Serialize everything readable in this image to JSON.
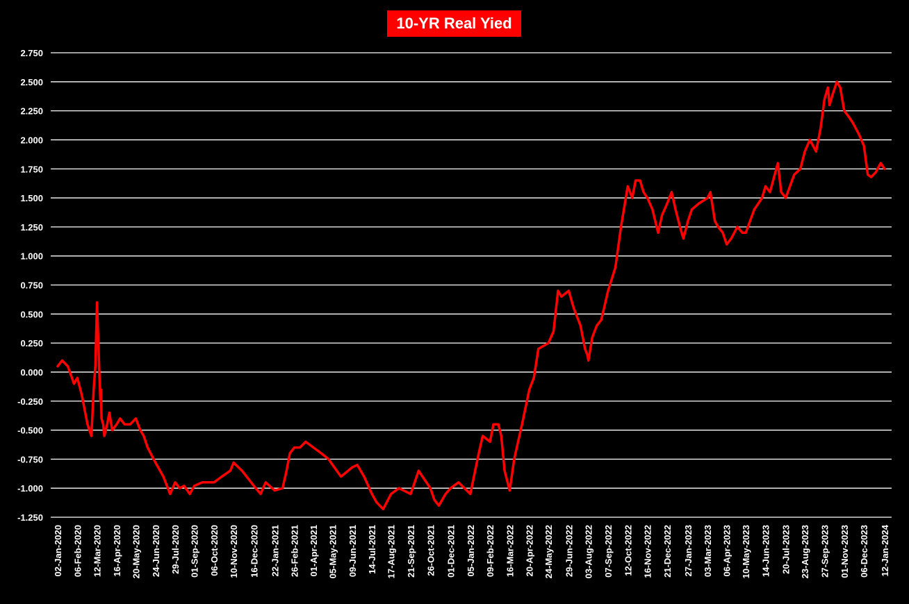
{
  "chart_data": {
    "type": "line",
    "title": "10-YR Real Yied",
    "xlabel": "",
    "ylabel": "",
    "ylim": [
      -1.25,
      2.75
    ],
    "grid": true,
    "colors": {
      "background": "#000000",
      "line": "#ff0000",
      "grid": "#ffffff",
      "text": "#ffffff",
      "title_bg": "#ff0000"
    },
    "y_ticks": [
      "2.750",
      "2.500",
      "2.250",
      "2.000",
      "1.750",
      "1.500",
      "1.250",
      "1.000",
      "0.750",
      "0.500",
      "0.250",
      "0.000",
      "-0.250",
      "-0.500",
      "-0.750",
      "-1.000",
      "-1.250"
    ],
    "x_ticks": [
      "02-Jan-2020",
      "06-Feb-2020",
      "12-Mar-2020",
      "16-Apr-2020",
      "20-May-2020",
      "24-Jun-2020",
      "29-Jul-2020",
      "01-Sep-2020",
      "06-Oct-2020",
      "10-Nov-2020",
      "16-Dec-2020",
      "22-Jan-2021",
      "26-Feb-2021",
      "01-Apr-2021",
      "05-May-2021",
      "09-Jun-2021",
      "14-Jul-2021",
      "17-Aug-2021",
      "21-Sep-2021",
      "26-Oct-2021",
      "01-Dec-2021",
      "05-Jan-2022",
      "09-Feb-2022",
      "16-Mar-2022",
      "20-Apr-2022",
      "24-May-2022",
      "29-Jun-2022",
      "03-Aug-2022",
      "07-Sep-2022",
      "12-Oct-2022",
      "16-Nov-2022",
      "21-Dec-2022",
      "27-Jan-2023",
      "03-Mar-2023",
      "06-Apr-2023",
      "10-May-2023",
      "14-Jun-2023",
      "20-Jul-2023",
      "23-Aug-2023",
      "27-Sep-2023",
      "01-Nov-2023",
      "06-Dec-2023",
      "12-Jan-2024"
    ],
    "series": [
      {
        "name": "",
        "x": [
          "2020-01-02",
          "2020-01-10",
          "2020-01-20",
          "2020-01-31",
          "2020-02-06",
          "2020-02-14",
          "2020-02-24",
          "2020-03-02",
          "2020-03-06",
          "2020-03-09",
          "2020-03-12",
          "2020-03-16",
          "2020-03-18",
          "2020-03-19",
          "2020-03-20",
          "2020-03-23",
          "2020-03-25",
          "2020-03-30",
          "2020-04-03",
          "2020-04-08",
          "2020-04-16",
          "2020-04-22",
          "2020-04-30",
          "2020-05-10",
          "2020-05-20",
          "2020-05-28",
          "2020-06-03",
          "2020-06-10",
          "2020-06-24",
          "2020-07-08",
          "2020-07-20",
          "2020-07-29",
          "2020-08-06",
          "2020-08-14",
          "2020-08-24",
          "2020-09-01",
          "2020-09-15",
          "2020-10-06",
          "2020-10-20",
          "2020-11-04",
          "2020-11-10",
          "2020-11-25",
          "2020-12-16",
          "2020-12-28",
          "2021-01-06",
          "2021-01-22",
          "2021-02-05",
          "2021-02-12",
          "2021-02-18",
          "2021-02-26",
          "2021-03-08",
          "2021-03-18",
          "2021-04-01",
          "2021-04-15",
          "2021-04-28",
          "2021-05-05",
          "2021-05-20",
          "2021-06-09",
          "2021-06-18",
          "2021-06-30",
          "2021-07-14",
          "2021-07-22",
          "2021-08-03",
          "2021-08-17",
          "2021-08-31",
          "2021-09-21",
          "2021-10-05",
          "2021-10-12",
          "2021-10-26",
          "2021-11-02",
          "2021-11-10",
          "2021-11-22",
          "2021-12-01",
          "2021-12-15",
          "2022-01-05",
          "2022-01-20",
          "2022-01-27",
          "2022-02-09",
          "2022-02-15",
          "2022-02-24",
          "2022-03-01",
          "2022-03-07",
          "2022-03-16",
          "2022-03-24",
          "2022-03-31",
          "2022-04-07",
          "2022-04-20",
          "2022-04-28",
          "2022-05-06",
          "2022-05-24",
          "2022-06-02",
          "2022-06-10",
          "2022-06-16",
          "2022-06-29",
          "2022-07-08",
          "2022-07-20",
          "2022-07-28",
          "2022-08-01",
          "2022-08-03",
          "2022-08-10",
          "2022-08-18",
          "2022-08-26",
          "2022-09-07",
          "2022-09-20",
          "2022-09-30",
          "2022-10-12",
          "2022-10-20",
          "2022-10-26",
          "2022-11-03",
          "2022-11-09",
          "2022-11-16",
          "2022-11-25",
          "2022-12-05",
          "2022-12-12",
          "2022-12-21",
          "2022-12-29",
          "2023-01-05",
          "2023-01-13",
          "2023-01-19",
          "2023-01-27",
          "2023-02-03",
          "2023-02-15",
          "2023-03-03",
          "2023-03-08",
          "2023-03-16",
          "2023-03-22",
          "2023-03-30",
          "2023-04-06",
          "2023-04-14",
          "2023-04-25",
          "2023-05-04",
          "2023-05-10",
          "2023-05-25",
          "2023-06-08",
          "2023-06-14",
          "2023-06-22",
          "2023-07-06",
          "2023-07-12",
          "2023-07-20",
          "2023-08-04",
          "2023-08-15",
          "2023-08-23",
          "2023-09-01",
          "2023-09-12",
          "2023-09-20",
          "2023-09-27",
          "2023-10-03",
          "2023-10-06",
          "2023-10-12",
          "2023-10-19",
          "2023-10-25",
          "2023-11-01",
          "2023-11-09",
          "2023-11-16",
          "2023-11-27",
          "2023-12-06",
          "2023-12-13",
          "2023-12-19",
          "2023-12-27",
          "2024-01-05",
          "2024-01-12"
        ],
        "y": [
          0.05,
          0.1,
          0.05,
          -0.1,
          -0.05,
          -0.2,
          -0.45,
          -0.55,
          -0.15,
          0.05,
          0.6,
          0.0,
          -0.25,
          -0.15,
          -0.4,
          -0.45,
          -0.55,
          -0.45,
          -0.35,
          -0.5,
          -0.45,
          -0.4,
          -0.45,
          -0.45,
          -0.4,
          -0.5,
          -0.55,
          -0.65,
          -0.78,
          -0.9,
          -1.05,
          -0.95,
          -1.0,
          -0.98,
          -1.05,
          -0.98,
          -0.95,
          -0.95,
          -0.9,
          -0.85,
          -0.78,
          -0.85,
          -0.98,
          -1.05,
          -0.95,
          -1.02,
          -1.0,
          -0.85,
          -0.7,
          -0.65,
          -0.65,
          -0.6,
          -0.65,
          -0.7,
          -0.75,
          -0.8,
          -0.9,
          -0.82,
          -0.8,
          -0.9,
          -1.05,
          -1.12,
          -1.18,
          -1.05,
          -1.0,
          -1.05,
          -0.85,
          -0.9,
          -1.0,
          -1.1,
          -1.15,
          -1.05,
          -1.0,
          -0.95,
          -1.05,
          -0.7,
          -0.55,
          -0.6,
          -0.45,
          -0.45,
          -0.55,
          -0.85,
          -1.02,
          -0.75,
          -0.6,
          -0.45,
          -0.15,
          -0.05,
          0.2,
          0.25,
          0.35,
          0.7,
          0.65,
          0.7,
          0.55,
          0.4,
          0.2,
          0.15,
          0.1,
          0.3,
          0.4,
          0.45,
          0.7,
          0.9,
          1.25,
          1.6,
          1.5,
          1.65,
          1.65,
          1.55,
          1.5,
          1.4,
          1.2,
          1.35,
          1.45,
          1.55,
          1.4,
          1.25,
          1.15,
          1.3,
          1.4,
          1.45,
          1.5,
          1.55,
          1.3,
          1.25,
          1.2,
          1.1,
          1.15,
          1.25,
          1.2,
          1.2,
          1.4,
          1.5,
          1.6,
          1.55,
          1.8,
          1.55,
          1.5,
          1.7,
          1.75,
          1.9,
          2.0,
          1.9,
          2.1,
          2.35,
          2.45,
          2.3,
          2.4,
          2.5,
          2.45,
          2.25,
          2.2,
          2.15,
          2.05,
          1.95,
          1.7,
          1.68,
          1.72,
          1.8,
          1.75
        ]
      }
    ]
  }
}
